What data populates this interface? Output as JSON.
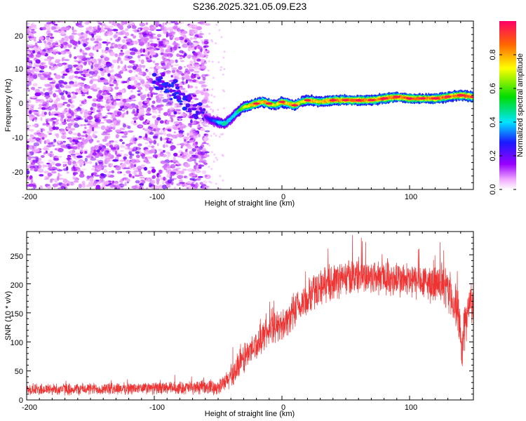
{
  "title": "S236.2025.321.05.09.E23",
  "chart_data": [
    {
      "type": "heatmap",
      "xlabel": "Height of straight line (km)",
      "ylabel": "Frequency (Hz)",
      "xlim": [
        -200,
        150
      ],
      "ylim": [
        -25,
        25
      ],
      "xticks": [
        -200,
        -100,
        0,
        100
      ],
      "yticks": [
        -20,
        -10,
        0,
        10,
        20
      ],
      "colorbar": {
        "label": "Normalized spectral amplitude",
        "range": [
          0,
          1
        ],
        "ticks": [
          "0.0",
          "0.2",
          "0.4",
          "0.6",
          "0.8"
        ],
        "tick_values": [
          0.0,
          0.2,
          0.4,
          0.6,
          0.8
        ]
      },
      "ridge": {
        "x": [
          -60,
          -55,
          -50,
          -45,
          -40,
          -35,
          -30,
          -25,
          -20,
          -15,
          -10,
          -5,
          0,
          5,
          10,
          15,
          20,
          30,
          40,
          50,
          60,
          70,
          80,
          90,
          100,
          110,
          120,
          130,
          140,
          150
        ],
        "freq": [
          -3.5,
          -4.5,
          -5.0,
          -5.5,
          -4.0,
          -2.0,
          -0.5,
          0.0,
          0.5,
          1.0,
          0.5,
          0.0,
          1.0,
          0.5,
          0.0,
          1.0,
          1.5,
          1.0,
          1.5,
          1.5,
          1.5,
          1.5,
          2.0,
          2.5,
          2.0,
          2.0,
          2.0,
          2.5,
          3.0,
          2.5
        ],
        "amplitude": [
          0.2,
          0.3,
          0.4,
          0.5,
          0.4,
          0.5,
          0.7,
          0.8,
          0.9,
          0.8,
          0.9,
          0.7,
          0.9,
          0.8,
          0.9,
          0.7,
          0.9,
          0.8,
          0.9,
          0.9,
          0.95,
          0.9,
          0.95,
          0.9,
          0.95,
          0.9,
          0.95,
          0.9,
          0.95,
          0.9
        ]
      }
    },
    {
      "type": "line",
      "xlabel": "Height of straight line (km)",
      "ylabel": "SNR (10 * v/v)",
      "xlim": [
        -200,
        150
      ],
      "ylim": [
        0,
        290
      ],
      "xticks": [
        -200,
        -100,
        0,
        100
      ],
      "yticks": [
        0,
        50,
        100,
        150,
        200,
        250
      ],
      "color": "#ee3333",
      "trend": {
        "x": [
          -200,
          -100,
          -50,
          -45,
          -40,
          -35,
          -30,
          -25,
          -20,
          -15,
          -10,
          0,
          10,
          20,
          30,
          40,
          50,
          60,
          80,
          100,
          120,
          130,
          138,
          141,
          144,
          150
        ],
        "mean": [
          18,
          20,
          22,
          28,
          40,
          55,
          70,
          85,
          95,
          110,
          120,
          130,
          150,
          175,
          195,
          205,
          210,
          215,
          210,
          205,
          200,
          190,
          150,
          85,
          140,
          180
        ],
        "spread": [
          10,
          10,
          12,
          15,
          20,
          25,
          25,
          25,
          25,
          25,
          25,
          25,
          30,
          30,
          30,
          30,
          30,
          30,
          30,
          30,
          30,
          35,
          40,
          30,
          40,
          35
        ]
      }
    }
  ]
}
